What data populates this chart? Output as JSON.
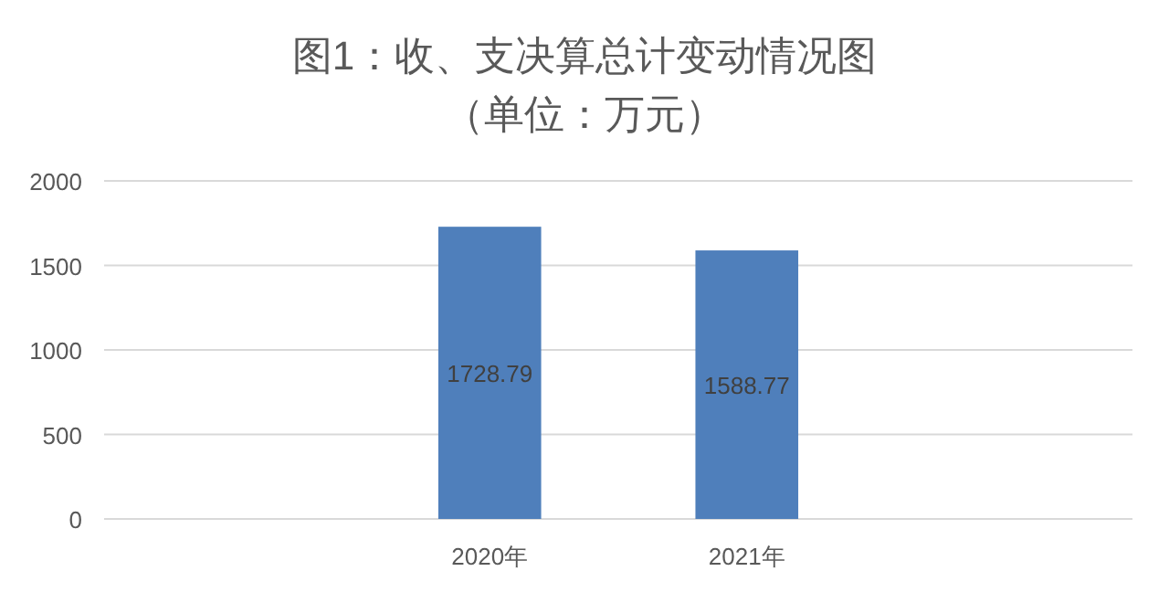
{
  "chart_data": {
    "type": "bar",
    "title": "图1：收、支决算总计变动情况图",
    "subtitle": "（单位：万元）",
    "categories": [
      null,
      "2020年",
      "2021年",
      null
    ],
    "values": [
      null,
      1728.79,
      1588.77,
      null
    ],
    "color": "#4f7fbb",
    "ylim": [
      0,
      2000
    ],
    "yticks": [
      0,
      500,
      1000,
      1500,
      2000
    ],
    "grid": "y",
    "data_labels": true
  }
}
